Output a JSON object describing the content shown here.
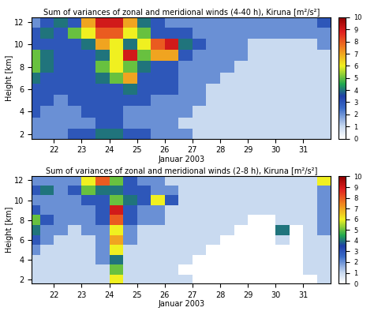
{
  "chart_data": [
    {
      "type": "heatmap",
      "title": "Sum of variances of zonal and meridional winds (4-40 h), Kiruna [m²/s²]",
      "xlabel": "Januar 2003",
      "ylabel": "Height [km]",
      "x": [
        21.25,
        21.75,
        22.25,
        22.75,
        23.25,
        23.75,
        24.25,
        24.75,
        25.25,
        25.75,
        26.25,
        26.75,
        27.25,
        27.75,
        28.25,
        28.75,
        29.25,
        29.75,
        30.25,
        30.75,
        31.25,
        31.75
      ],
      "y": [
        2,
        3,
        4,
        5,
        6,
        7,
        8,
        9,
        10,
        11,
        12
      ],
      "cells": [
        [
          2,
          2,
          2,
          3,
          3,
          4,
          4,
          3,
          3,
          2,
          2,
          2,
          1,
          1,
          1,
          1,
          1,
          1,
          1,
          1,
          1,
          1
        ],
        [
          2,
          2,
          2,
          2,
          2,
          3,
          3,
          2,
          2,
          2,
          2,
          1,
          1,
          1,
          1,
          1,
          1,
          1,
          1,
          1,
          1,
          1
        ],
        [
          3,
          2,
          2,
          2,
          3,
          3,
          3,
          2,
          2,
          2,
          2,
          2,
          1,
          1,
          1,
          1,
          1,
          1,
          1,
          1,
          1,
          1
        ],
        [
          3,
          3,
          2,
          3,
          3,
          3,
          3,
          3,
          3,
          2,
          2,
          2,
          2,
          1,
          1,
          1,
          1,
          1,
          1,
          1,
          1,
          1
        ],
        [
          3,
          3,
          3,
          3,
          3,
          3,
          3,
          4,
          3,
          3,
          3,
          2,
          2,
          1,
          1,
          1,
          1,
          1,
          1,
          1,
          1,
          1
        ],
        [
          4,
          3,
          3,
          3,
          3,
          4,
          5,
          7,
          3,
          3,
          3,
          2,
          2,
          2,
          1,
          1,
          1,
          1,
          1,
          1,
          1,
          1
        ],
        [
          5,
          4,
          3,
          3,
          3,
          5,
          6,
          5,
          4,
          3,
          3,
          2,
          2,
          2,
          2,
          1,
          1,
          1,
          1,
          1,
          1,
          1
        ],
        [
          5,
          4,
          3,
          3,
          3,
          4,
          6,
          9,
          5,
          7,
          7,
          3,
          2,
          2,
          2,
          2,
          1,
          1,
          1,
          1,
          1,
          1
        ],
        [
          3,
          3,
          3,
          3,
          4,
          7,
          6,
          4,
          6,
          8,
          9,
          4,
          3,
          2,
          2,
          2,
          1,
          1,
          1,
          1,
          1,
          2
        ],
        [
          3,
          4,
          3,
          5,
          6,
          8,
          8,
          6,
          5,
          3,
          3,
          3,
          2,
          2,
          2,
          2,
          2,
          2,
          2,
          2,
          2,
          2
        ],
        [
          2,
          3,
          4,
          3,
          7,
          9,
          9,
          7,
          4,
          3,
          2,
          2,
          2,
          2,
          2,
          2,
          2,
          2,
          2,
          2,
          2,
          3
        ]
      ],
      "xlim": [
        21.2,
        32.0
      ],
      "ylim": [
        1.6,
        12.4
      ],
      "xticks": [
        22,
        23,
        24,
        25,
        26,
        27,
        28,
        29,
        30,
        31
      ],
      "yticks": [
        2,
        4,
        6,
        8,
        10,
        12
      ],
      "colorbar_range": [
        0,
        10
      ],
      "colorbar_ticks": [
        0,
        1,
        2,
        3,
        4,
        5,
        6,
        7,
        8,
        9,
        10
      ]
    },
    {
      "type": "heatmap",
      "title": "Sum of variances of zonal and meridional winds (2-8 h), Kiruna [m²/s²]",
      "xlabel": "Januar 2003",
      "ylabel": "Height [km]",
      "x": [
        21.25,
        21.75,
        22.25,
        22.75,
        23.25,
        23.75,
        24.25,
        24.75,
        25.25,
        25.75,
        26.25,
        26.75,
        27.25,
        27.75,
        28.25,
        28.75,
        29.25,
        29.75,
        30.25,
        30.75,
        31.25,
        31.75
      ],
      "y": [
        2,
        3,
        4,
        5,
        6,
        7,
        8,
        9,
        10,
        11,
        12
      ],
      "cells": [
        [
          1,
          1,
          1,
          1,
          1,
          1,
          6,
          1,
          1,
          1,
          1,
          1,
          0,
          0,
          0,
          0,
          0,
          0,
          0,
          0,
          0,
          1
        ],
        [
          1,
          1,
          1,
          1,
          1,
          1,
          5,
          1,
          1,
          1,
          1,
          0,
          0,
          0,
          0,
          0,
          0,
          0,
          0,
          0,
          1,
          1
        ],
        [
          1,
          1,
          1,
          1,
          1,
          2,
          4,
          1,
          1,
          1,
          1,
          1,
          0,
          0,
          0,
          0,
          0,
          0,
          0,
          0,
          1,
          1
        ],
        [
          2,
          1,
          1,
          1,
          1,
          2,
          6,
          1,
          1,
          1,
          1,
          1,
          1,
          0,
          0,
          0,
          0,
          0,
          0,
          0,
          1,
          1
        ],
        [
          3,
          2,
          1,
          1,
          1,
          2,
          7,
          2,
          1,
          1,
          1,
          1,
          1,
          1,
          0,
          0,
          0,
          0,
          1,
          0,
          1,
          1
        ],
        [
          4,
          2,
          2,
          1,
          2,
          2,
          6,
          2,
          1,
          1,
          1,
          1,
          1,
          1,
          1,
          0,
          0,
          0,
          4,
          0,
          1,
          2
        ],
        [
          5,
          3,
          2,
          2,
          2,
          3,
          8,
          3,
          2,
          2,
          1,
          1,
          1,
          1,
          1,
          1,
          0,
          0,
          1,
          1,
          1,
          2
        ],
        [
          3,
          2,
          2,
          2,
          2,
          3,
          9,
          3,
          2,
          2,
          1,
          1,
          1,
          1,
          1,
          1,
          1,
          1,
          1,
          1,
          1,
          2
        ],
        [
          2,
          2,
          2,
          2,
          3,
          3,
          5,
          4,
          3,
          6,
          3,
          1,
          1,
          1,
          1,
          1,
          1,
          1,
          1,
          1,
          1,
          2
        ],
        [
          3,
          4,
          2,
          3,
          5,
          4,
          4,
          3,
          3,
          2,
          2,
          1,
          1,
          1,
          1,
          1,
          1,
          1,
          1,
          1,
          1,
          2
        ],
        [
          2,
          2,
          2,
          2,
          6,
          8,
          5,
          3,
          2,
          2,
          1,
          1,
          1,
          1,
          1,
          1,
          1,
          1,
          1,
          1,
          1,
          6
        ]
      ],
      "xlim": [
        21.2,
        32.0
      ],
      "ylim": [
        1.6,
        12.4
      ],
      "xticks": [
        22,
        23,
        24,
        25,
        26,
        27,
        28,
        29,
        30,
        31
      ],
      "yticks": [
        2,
        4,
        6,
        8,
        10,
        12
      ],
      "colorbar_range": [
        0,
        10
      ],
      "colorbar_ticks": [
        0,
        1,
        2,
        3,
        4,
        5,
        6,
        7,
        8,
        9,
        10
      ]
    }
  ]
}
